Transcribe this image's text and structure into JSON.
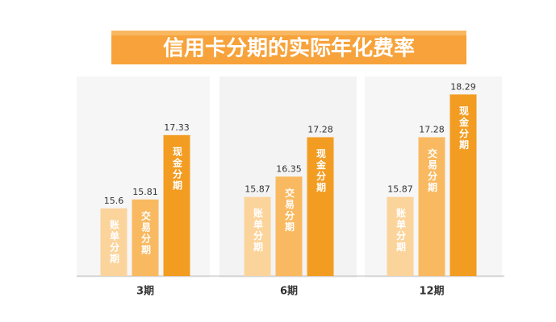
{
  "chart_data": {
    "type": "bar",
    "title": "信用卡分期的实际年化费率",
    "categories": [
      "3期",
      "6期",
      "12期"
    ],
    "series": [
      {
        "name": "账单分期",
        "color": "#fbd49c",
        "values": [
          15.6,
          15.87,
          15.87
        ]
      },
      {
        "name": "交易分期",
        "color": "#f9b960",
        "values": [
          15.81,
          16.35,
          17.28
        ]
      },
      {
        "name": "现金分期",
        "color": "#f39c22",
        "values": [
          17.33,
          17.28,
          18.29
        ]
      }
    ],
    "ylim": [
      14,
      19
    ]
  }
}
